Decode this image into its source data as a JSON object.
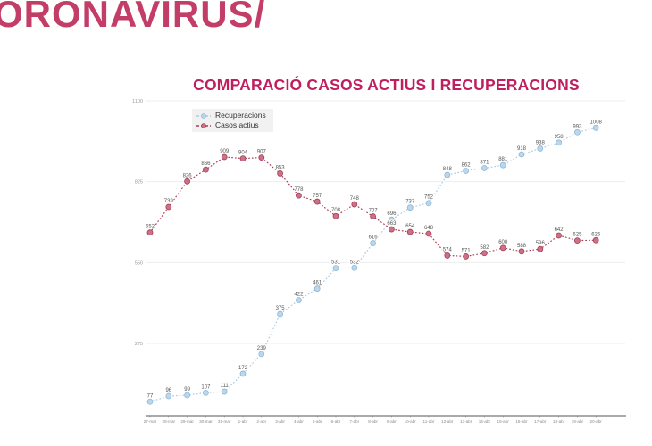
{
  "header": {
    "brand": "ORONAVIRUS/"
  },
  "colors": {
    "brand": "#c23e68",
    "title": "#c01f5f",
    "recuperacions": "#a9cbe4",
    "casos_actius": "#ab3d55",
    "axis": "#555555",
    "tick_label": "#8a8a8a",
    "point_label": "#555555",
    "gridline": "#ededed",
    "legend_bg": "#f1f1f1"
  },
  "chart_data": {
    "type": "line",
    "title": "COMPARACIÓ CASOS ACTIUS I RECUPERACIONS",
    "xlabel": "",
    "ylabel": "",
    "categories": [
      "27-mar",
      "28-mar",
      "29-mar",
      "30-mar",
      "31-mar",
      "1-abr",
      "2-abr",
      "3-abr",
      "4-abr",
      "5-abr",
      "6-abr",
      "7-abr",
      "8-abr",
      "9-abr",
      "10-abr",
      "11-abr",
      "12-abr",
      "13-abr",
      "14-abr",
      "15-abr",
      "16-abr",
      "17-abr",
      "18-abr",
      "19-abr",
      "20-abr"
    ],
    "series": [
      {
        "name": "Recuperacions",
        "color": "#a9cbe4",
        "marker_fill": "#bcd7ec",
        "marker_stroke": "#8db8d8",
        "values": [
          77,
          96,
          99,
          107,
          111,
          172,
          239,
          375,
          422,
          461,
          531,
          532,
          616,
          696,
          737,
          752,
          848,
          862,
          871,
          881,
          918,
          938,
          958,
          993,
          1008
        ]
      },
      {
        "name": "Casos actius",
        "color": "#ab3d55",
        "marker_fill": "#cb7287",
        "marker_stroke": "#a63d58",
        "values": [
          652,
          739,
          826,
          866,
          909,
          904,
          907,
          853,
          778,
          757,
          708,
          748,
          707,
          663,
          654,
          648,
          574,
          571,
          582,
          600,
          588,
          596,
          642,
          625,
          626
        ]
      }
    ],
    "yticks": [
      275,
      550,
      825,
      1100
    ],
    "ylim": [
      30,
      1100
    ],
    "grid": true,
    "legend_position": "top-left",
    "line_style": "dotted",
    "point_labels": true
  }
}
